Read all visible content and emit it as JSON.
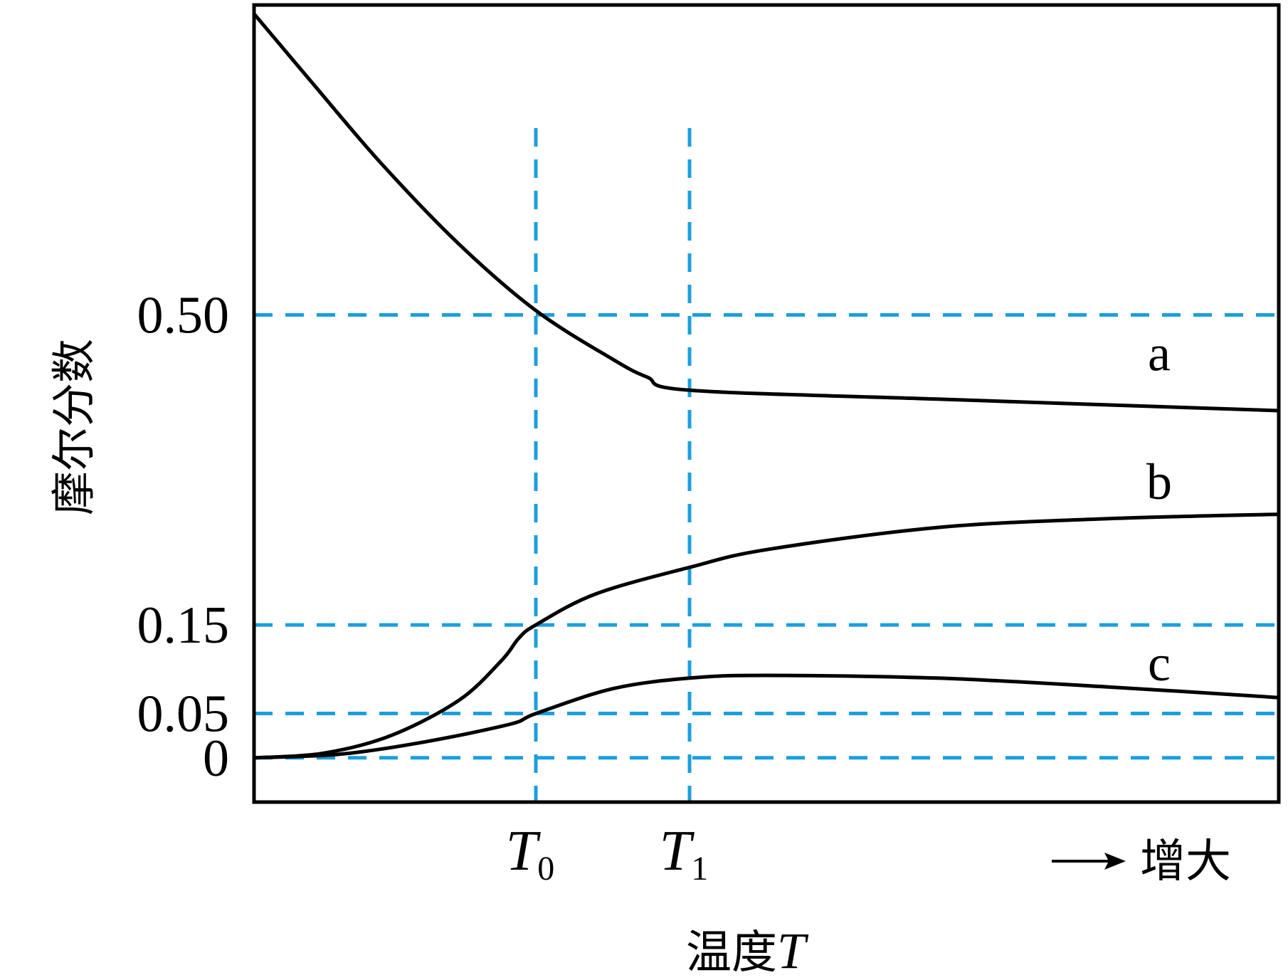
{
  "chart_data": {
    "type": "line",
    "xlabel": "温度",
    "xlabel_symbol": "T",
    "ylabel": "摩尔分数",
    "x_direction_label": "增大",
    "y_ticks": [
      {
        "value": 0,
        "label": "0"
      },
      {
        "value": 0.05,
        "label": "0.05"
      },
      {
        "value": 0.15,
        "label": "0.15"
      },
      {
        "value": 0.5,
        "label": "0.50"
      }
    ],
    "x_ticks": [
      {
        "value": 3.3,
        "main": "T",
        "sub": "0"
      },
      {
        "value": 5.1,
        "main": "T",
        "sub": "1"
      }
    ],
    "xlim": [
      0,
      12
    ],
    "ylim": [
      -0.05,
      0.85
    ],
    "grid": "dashed reference lines at labeled ticks",
    "colors": {
      "series": "#000000",
      "reference": "#1a9fdf"
    },
    "series": [
      {
        "name": "a",
        "points": [
          [
            0.0,
            0.84
          ],
          [
            0.7,
            0.76
          ],
          [
            1.5,
            0.67
          ],
          [
            2.4,
            0.58
          ],
          [
            3.3,
            0.505
          ],
          [
            4.2,
            0.45
          ],
          [
            4.6,
            0.43
          ],
          [
            5.1,
            0.415
          ],
          [
            8,
            0.405
          ],
          [
            12,
            0.392
          ]
        ]
      },
      {
        "name": "b",
        "points": [
          [
            0.0,
            0.0
          ],
          [
            0.8,
            0.005
          ],
          [
            1.6,
            0.025
          ],
          [
            2.4,
            0.065
          ],
          [
            2.9,
            0.11
          ],
          [
            3.1,
            0.135
          ],
          [
            3.3,
            0.15
          ],
          [
            4.0,
            0.185
          ],
          [
            5.1,
            0.215
          ],
          [
            6,
            0.235
          ],
          [
            8,
            0.26
          ],
          [
            10,
            0.27
          ],
          [
            12,
            0.275
          ]
        ]
      },
      {
        "name": "c",
        "points": [
          [
            0.0,
            0.0
          ],
          [
            1,
            0.004
          ],
          [
            2,
            0.018
          ],
          [
            3,
            0.038
          ],
          [
            3.3,
            0.05
          ],
          [
            4.2,
            0.078
          ],
          [
            5.1,
            0.09
          ],
          [
            6,
            0.093
          ],
          [
            8,
            0.09
          ],
          [
            10,
            0.08
          ],
          [
            12,
            0.068
          ]
        ]
      }
    ]
  }
}
